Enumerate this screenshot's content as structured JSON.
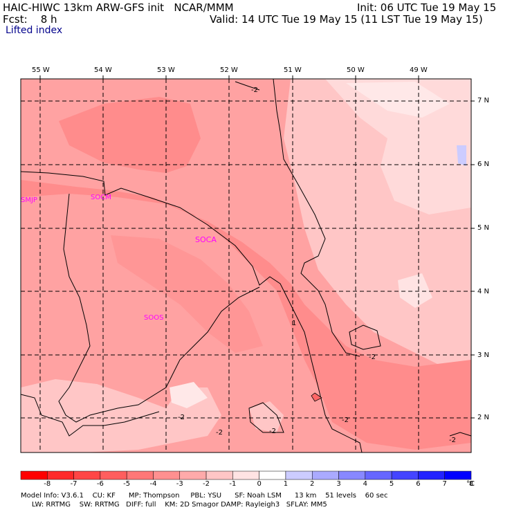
{
  "header": {
    "line1_left": "HAIC-HIWC 13km ARW-GFS init   NCAR/MMM",
    "line1_right": "Init: 06 UTC Tue 19 May 15",
    "line2_left": "Fcst:    8 h",
    "line2_right": "Valid: 14 UTC Tue 19 May 15 (11 LST Tue 19 May 15)",
    "field": "Lifted index"
  },
  "lon_labels": [
    "55 W",
    "54 W",
    "53 W",
    "52 W",
    "51 W",
    "50 W",
    "49 W"
  ],
  "lat_labels": [
    "7 N",
    "6 N",
    "5 N",
    "4 N",
    "3 N",
    "2 N"
  ],
  "stations": [
    "SMJP",
    "SOCM",
    "SOCA",
    "SOOS"
  ],
  "contour_labels": [
    "-2",
    "-2",
    "-2",
    "-2",
    "-2",
    "-2",
    "-2",
    "1"
  ],
  "colorbar": {
    "levels": [
      "-8",
      "-7",
      "-6",
      "-5",
      "-4",
      "-3",
      "-2",
      "-1",
      "0",
      "1",
      "2",
      "3",
      "4",
      "5",
      "6",
      "7",
      "8"
    ],
    "unit": "°C",
    "colors": [
      "#ff0000",
      "#ff2a2a",
      "#ff4646",
      "#ff5e5e",
      "#ff7777",
      "#ff9090",
      "#ffaaaa",
      "#ffc6c6",
      "#ffe3e3",
      "#ffffff",
      "#ccccff",
      "#aaaaff",
      "#8888ff",
      "#6666ff",
      "#4444ff",
      "#2222ff",
      "#0000ff"
    ]
  },
  "footer": {
    "line1": "Model Info: V3.6.1    CU: KF      MP: Thompson     PBL: YSU      SF: Noah LSM      13 km    51 levels    60 sec",
    "line2": "     LW: RRTMG    SW: RRTMG   DIFF: full    KM: 2D Smagor DAMP: Rayleigh3   SFLAY: MM5"
  }
}
